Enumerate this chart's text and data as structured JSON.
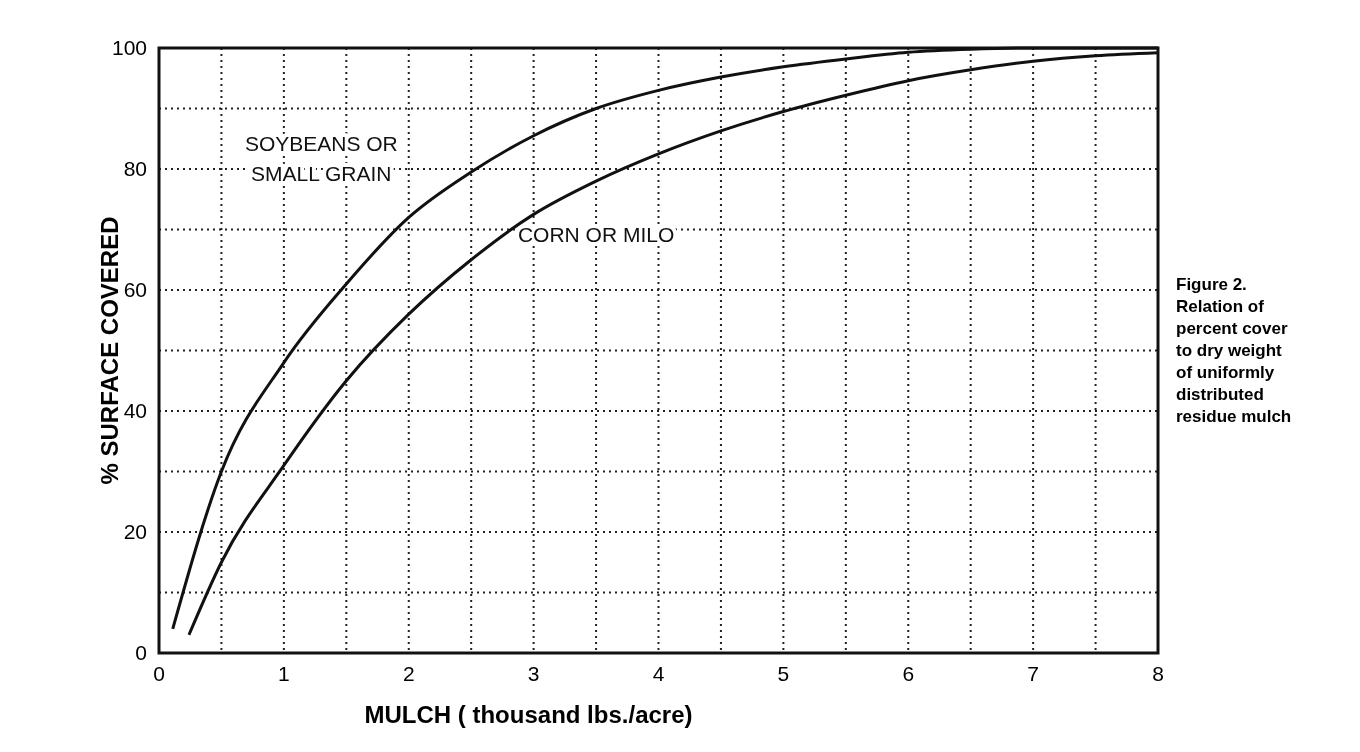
{
  "chart_data": {
    "type": "line",
    "xlabel": "MULCH ( thousand lbs./acre)",
    "ylabel": "% SURFACE COVERED",
    "annotations": [
      "Figure 2. Relation of percent cover to dry weight of uniformly distributed residue mulch"
    ],
    "xlim": [
      0,
      8
    ],
    "ylim": [
      0,
      100
    ],
    "xticks": [
      0,
      {
        "value": 0.5,
        "label": null
      },
      1,
      {
        "value": 1.5,
        "label": null
      },
      2,
      {
        "value": 2.5,
        "label": null
      },
      3,
      {
        "value": 3.5,
        "label": null
      },
      4,
      {
        "value": 4.5,
        "label": null
      },
      5,
      {
        "value": 5.5,
        "label": null
      },
      6,
      {
        "value": 6.5,
        "label": null
      },
      7,
      {
        "value": 7.5,
        "label": null
      },
      8
    ],
    "yticks": [
      0,
      {
        "value": 10,
        "label": null
      },
      20,
      {
        "value": 30,
        "label": null
      },
      40,
      {
        "value": 50,
        "label": null
      },
      60,
      {
        "value": 70,
        "label": null
      },
      80,
      {
        "value": 90,
        "label": null
      },
      100
    ],
    "grid": true,
    "marker": "none",
    "line_style": "solid",
    "series": [
      {
        "name": "SOYBEANS OR SMALL GRAIN",
        "color": "#111111",
        "x": [
          0.11,
          0.5,
          1,
          1.5,
          2,
          2.5,
          3,
          3.5,
          4,
          4.5,
          5,
          5.5,
          6,
          6.5,
          7,
          7.5,
          8
        ],
        "values": [
          4,
          30,
          48,
          61,
          72,
          79.5,
          85.5,
          90,
          93,
          95.2,
          96.9,
          98.2,
          99.3,
          99.8,
          100,
          100,
          100
        ]
      },
      {
        "name": "CORN OR MILO",
        "color": "#111111",
        "x": [
          0.24,
          0.5,
          1,
          1.5,
          2,
          2.5,
          3,
          3.5,
          4,
          4.5,
          5,
          5.5,
          6,
          6.5,
          7,
          7.5,
          8
        ],
        "values": [
          3,
          15,
          31,
          45,
          56,
          65,
          72.5,
          78,
          82.5,
          86.3,
          89.5,
          92.2,
          94.6,
          96.4,
          97.8,
          98.7,
          99.2
        ]
      }
    ]
  }
}
